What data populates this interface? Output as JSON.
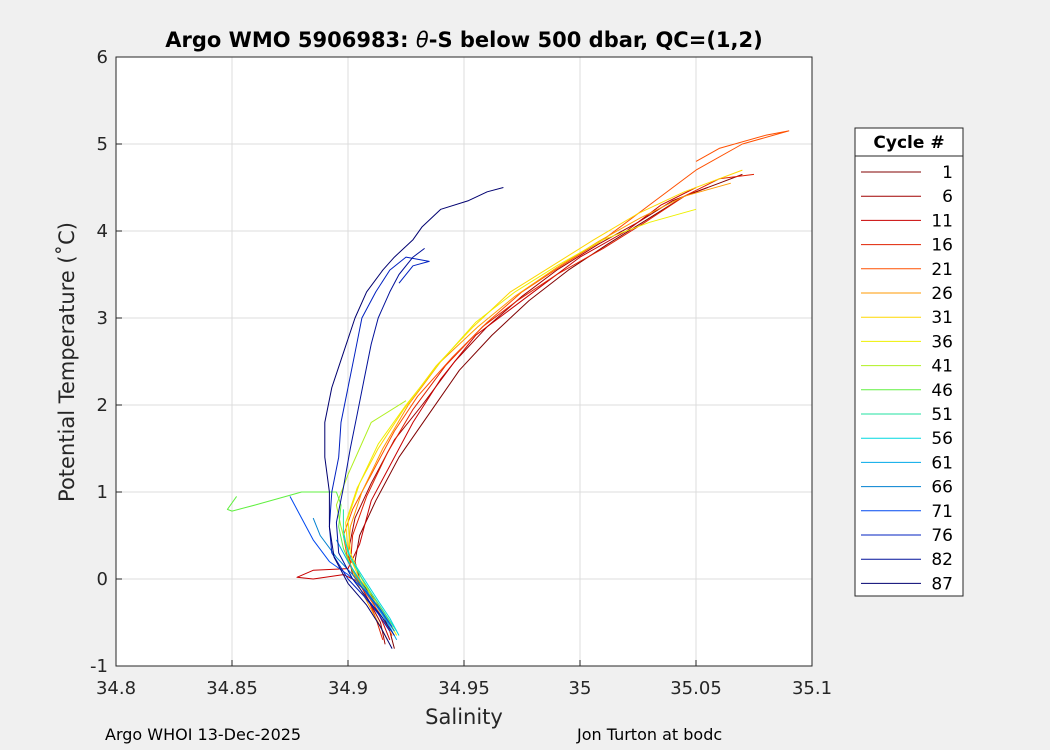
{
  "chart_data": {
    "type": "line",
    "title_prefix": "Argo WMO 5906983: ",
    "title_theta": "θ",
    "title_suffix": "-S below 500 dbar,  QC=(1,2)",
    "xlabel": "Salinity",
    "ylabel": "Potential Temperature (˚C)",
    "xlim": [
      34.8,
      35.1
    ],
    "ylim": [
      -1,
      6
    ],
    "xticks": [
      "34.8",
      "34.85",
      "34.9",
      "34.95",
      "35",
      "35.05",
      "35.1"
    ],
    "yticks": [
      "-1",
      "0",
      "1",
      "2",
      "3",
      "4",
      "5",
      "6"
    ],
    "grid": true,
    "legend": {
      "title": "Cycle #",
      "placement": "right",
      "entries": [
        {
          "name": "1",
          "color": "#800000"
        },
        {
          "name": "6",
          "color": "#a00000"
        },
        {
          "name": "11",
          "color": "#c80000"
        },
        {
          "name": "16",
          "color": "#e02000"
        },
        {
          "name": "21",
          "color": "#ff5000"
        },
        {
          "name": "26",
          "color": "#ff9a00"
        },
        {
          "name": "31",
          "color": "#ffd800"
        },
        {
          "name": "36",
          "color": "#eef000"
        },
        {
          "name": "41",
          "color": "#b0f020"
        },
        {
          "name": "46",
          "color": "#60f040"
        },
        {
          "name": "51",
          "color": "#20e0a0"
        },
        {
          "name": "56",
          "color": "#00d8e0"
        },
        {
          "name": "61",
          "color": "#00a8e8"
        },
        {
          "name": "66",
          "color": "#0080d0"
        },
        {
          "name": "71",
          "color": "#0048f0"
        },
        {
          "name": "76",
          "color": "#0020c0"
        },
        {
          "name": "82",
          "color": "#00109a"
        },
        {
          "name": "87",
          "color": "#000070"
        }
      ]
    },
    "series": [
      {
        "name": "1",
        "color": "#800000",
        "points": [
          [
            34.92,
            -0.8
          ],
          [
            34.918,
            -0.6
          ],
          [
            34.915,
            -0.4
          ],
          [
            34.912,
            -0.25
          ],
          [
            34.908,
            -0.12
          ],
          [
            34.905,
            0.0
          ],
          [
            34.903,
            0.2
          ],
          [
            34.905,
            0.5
          ],
          [
            34.912,
            0.9
          ],
          [
            34.922,
            1.4
          ],
          [
            34.935,
            1.9
          ],
          [
            34.948,
            2.4
          ],
          [
            34.962,
            2.8
          ],
          [
            34.978,
            3.2
          ],
          [
            34.995,
            3.55
          ],
          [
            35.012,
            3.85
          ],
          [
            35.03,
            4.15
          ],
          [
            35.045,
            4.4
          ],
          [
            35.06,
            4.55
          ],
          [
            35.07,
            4.65
          ]
        ]
      },
      {
        "name": "6",
        "color": "#a00000",
        "points": [
          [
            34.916,
            -0.75
          ],
          [
            34.914,
            -0.5
          ],
          [
            34.91,
            -0.3
          ],
          [
            34.906,
            -0.1
          ],
          [
            34.902,
            0.05
          ],
          [
            34.9,
            0.3
          ],
          [
            34.903,
            0.7
          ],
          [
            34.91,
            1.1
          ],
          [
            34.92,
            1.6
          ],
          [
            34.932,
            2.0
          ],
          [
            34.946,
            2.5
          ],
          [
            34.96,
            2.9
          ],
          [
            34.975,
            3.25
          ],
          [
            34.99,
            3.55
          ],
          [
            35.008,
            3.85
          ],
          [
            35.025,
            4.1
          ],
          [
            35.04,
            4.35
          ],
          [
            35.055,
            4.5
          ]
        ]
      },
      {
        "name": "11",
        "color": "#c80000",
        "points": [
          [
            34.918,
            -0.7
          ],
          [
            34.915,
            -0.5
          ],
          [
            34.911,
            -0.28
          ],
          [
            34.906,
            -0.05
          ],
          [
            34.898,
            0.05
          ],
          [
            34.885,
            0.0
          ],
          [
            34.878,
            0.02
          ],
          [
            34.885,
            0.1
          ],
          [
            34.9,
            0.12
          ],
          [
            34.905,
            0.4
          ],
          [
            34.91,
            0.9
          ],
          [
            34.918,
            1.3
          ],
          [
            34.928,
            1.8
          ],
          [
            34.94,
            2.3
          ],
          [
            34.955,
            2.8
          ],
          [
            34.97,
            3.1
          ],
          [
            34.985,
            3.4
          ],
          [
            35.0,
            3.7
          ],
          [
            35.02,
            4.0
          ],
          [
            35.035,
            4.3
          ],
          [
            35.05,
            4.5
          ]
        ]
      },
      {
        "name": "16",
        "color": "#e02000",
        "points": [
          [
            34.915,
            -0.7
          ],
          [
            34.912,
            -0.45
          ],
          [
            34.909,
            -0.25
          ],
          [
            34.905,
            -0.05
          ],
          [
            34.901,
            0.15
          ],
          [
            34.902,
            0.5
          ],
          [
            34.908,
            0.95
          ],
          [
            34.917,
            1.45
          ],
          [
            34.928,
            1.95
          ],
          [
            34.942,
            2.45
          ],
          [
            34.958,
            2.9
          ],
          [
            34.973,
            3.2
          ],
          [
            34.99,
            3.5
          ],
          [
            35.01,
            3.8
          ],
          [
            35.028,
            4.1
          ],
          [
            35.045,
            4.4
          ],
          [
            35.06,
            4.6
          ],
          [
            35.075,
            4.65
          ]
        ]
      },
      {
        "name": "21",
        "color": "#ff5000",
        "points": [
          [
            34.919,
            -0.65
          ],
          [
            34.915,
            -0.45
          ],
          [
            34.91,
            -0.25
          ],
          [
            34.905,
            -0.05
          ],
          [
            34.9,
            0.2
          ],
          [
            34.898,
            0.5
          ],
          [
            34.902,
            0.8
          ],
          [
            34.91,
            1.2
          ],
          [
            34.92,
            1.7
          ],
          [
            34.93,
            2.1
          ],
          [
            34.945,
            2.55
          ],
          [
            34.96,
            2.95
          ],
          [
            34.975,
            3.3
          ],
          [
            34.992,
            3.6
          ],
          [
            35.01,
            3.9
          ],
          [
            35.03,
            4.3
          ],
          [
            35.05,
            4.7
          ],
          [
            35.07,
            5.0
          ],
          [
            35.09,
            5.15
          ],
          [
            35.08,
            5.1
          ],
          [
            35.06,
            4.95
          ],
          [
            35.05,
            4.8
          ]
        ]
      },
      {
        "name": "26",
        "color": "#ff9a00",
        "points": [
          [
            34.917,
            -0.7
          ],
          [
            34.913,
            -0.5
          ],
          [
            34.909,
            -0.3
          ],
          [
            34.904,
            -0.05
          ],
          [
            34.9,
            0.25
          ],
          [
            34.901,
            0.6
          ],
          [
            34.906,
            1.0
          ],
          [
            34.915,
            1.5
          ],
          [
            34.926,
            2.0
          ],
          [
            34.94,
            2.5
          ],
          [
            34.956,
            2.9
          ],
          [
            34.972,
            3.25
          ],
          [
            34.99,
            3.58
          ],
          [
            35.008,
            3.88
          ],
          [
            35.026,
            4.15
          ],
          [
            35.045,
            4.4
          ],
          [
            35.065,
            4.55
          ]
        ]
      },
      {
        "name": "31",
        "color": "#ffd800",
        "points": [
          [
            34.92,
            -0.6
          ],
          [
            34.916,
            -0.4
          ],
          [
            34.911,
            -0.2
          ],
          [
            34.905,
            0.0
          ],
          [
            34.9,
            0.3
          ],
          [
            34.899,
            0.65
          ],
          [
            34.904,
            1.05
          ],
          [
            34.913,
            1.5
          ],
          [
            34.924,
            1.95
          ],
          [
            34.938,
            2.45
          ],
          [
            34.954,
            2.9
          ],
          [
            34.97,
            3.3
          ],
          [
            34.988,
            3.6
          ],
          [
            35.006,
            3.9
          ],
          [
            35.025,
            4.2
          ],
          [
            35.045,
            4.45
          ],
          [
            35.07,
            4.7
          ]
        ]
      },
      {
        "name": "36",
        "color": "#eef000",
        "points": [
          [
            34.921,
            -0.65
          ],
          [
            34.917,
            -0.45
          ],
          [
            34.912,
            -0.25
          ],
          [
            34.906,
            0.0
          ],
          [
            34.901,
            0.3
          ],
          [
            34.9,
            0.7
          ],
          [
            34.905,
            1.1
          ],
          [
            34.913,
            1.55
          ],
          [
            34.925,
            2.0
          ],
          [
            34.94,
            2.5
          ],
          [
            34.955,
            2.95
          ],
          [
            34.972,
            3.3
          ],
          [
            34.99,
            3.6
          ],
          [
            35.01,
            3.9
          ],
          [
            35.03,
            4.1
          ],
          [
            35.05,
            4.25
          ]
        ]
      },
      {
        "name": "41",
        "color": "#b0f020",
        "points": [
          [
            34.92,
            -0.6
          ],
          [
            34.915,
            -0.4
          ],
          [
            34.91,
            -0.2
          ],
          [
            34.905,
            0.05
          ],
          [
            34.9,
            0.3
          ],
          [
            34.897,
            0.6
          ],
          [
            34.895,
            0.85
          ],
          [
            34.9,
            1.2
          ],
          [
            34.905,
            1.5
          ],
          [
            34.91,
            1.8
          ],
          [
            34.925,
            2.05
          ]
        ]
      },
      {
        "name": "46",
        "color": "#60f040",
        "points": [
          [
            34.919,
            -0.55
          ],
          [
            34.914,
            -0.35
          ],
          [
            34.908,
            -0.15
          ],
          [
            34.902,
            0.1
          ],
          [
            34.898,
            0.35
          ],
          [
            34.896,
            0.6
          ],
          [
            34.897,
            0.85
          ],
          [
            34.895,
            1.0
          ],
          [
            34.88,
            1.0
          ],
          [
            34.86,
            0.85
          ],
          [
            34.85,
            0.78
          ],
          [
            34.848,
            0.8
          ],
          [
            34.852,
            0.95
          ]
        ]
      },
      {
        "name": "51",
        "color": "#20e0a0",
        "points": [
          [
            34.921,
            -0.6
          ],
          [
            34.916,
            -0.4
          ],
          [
            34.911,
            -0.2
          ],
          [
            34.905,
            0.05
          ],
          [
            34.9,
            0.3
          ],
          [
            34.898,
            0.55
          ],
          [
            34.898,
            0.8
          ]
        ]
      },
      {
        "name": "56",
        "color": "#00d8e0",
        "points": [
          [
            34.922,
            -0.65
          ],
          [
            34.918,
            -0.45
          ],
          [
            34.913,
            -0.25
          ],
          [
            34.907,
            0.0
          ],
          [
            34.901,
            0.25
          ],
          [
            34.898,
            0.5
          ]
        ]
      },
      {
        "name": "61",
        "color": "#00a8e8",
        "points": [
          [
            34.921,
            -0.7
          ],
          [
            34.917,
            -0.5
          ],
          [
            34.912,
            -0.3
          ],
          [
            34.906,
            -0.05
          ],
          [
            34.9,
            0.2
          ],
          [
            34.895,
            0.45
          ]
        ]
      },
      {
        "name": "66",
        "color": "#0080d0",
        "points": [
          [
            34.92,
            -0.6
          ],
          [
            34.915,
            -0.4
          ],
          [
            34.909,
            -0.2
          ],
          [
            34.902,
            0.05
          ],
          [
            34.895,
            0.25
          ],
          [
            34.888,
            0.5
          ],
          [
            34.885,
            0.7
          ]
        ]
      },
      {
        "name": "71",
        "color": "#0048f0",
        "points": [
          [
            34.919,
            -0.55
          ],
          [
            34.914,
            -0.35
          ],
          [
            34.908,
            -0.15
          ],
          [
            34.9,
            0.05
          ],
          [
            34.892,
            0.2
          ],
          [
            34.885,
            0.45
          ],
          [
            34.88,
            0.7
          ],
          [
            34.875,
            0.95
          ]
        ]
      },
      {
        "name": "76",
        "color": "#0020c0",
        "points": [
          [
            34.918,
            -0.6
          ],
          [
            34.913,
            -0.4
          ],
          [
            34.907,
            -0.2
          ],
          [
            34.9,
            0.0
          ],
          [
            34.893,
            0.3
          ],
          [
            34.892,
            0.6
          ],
          [
            34.893,
            1.0
          ],
          [
            34.896,
            1.4
          ],
          [
            34.897,
            1.8
          ],
          [
            34.9,
            2.2
          ],
          [
            34.903,
            2.6
          ],
          [
            34.906,
            3.0
          ],
          [
            34.912,
            3.3
          ],
          [
            34.918,
            3.55
          ],
          [
            34.925,
            3.7
          ],
          [
            34.935,
            3.65
          ],
          [
            34.928,
            3.6
          ],
          [
            34.922,
            3.4
          ]
        ]
      },
      {
        "name": "82",
        "color": "#00109a",
        "points": [
          [
            34.92,
            -0.65
          ],
          [
            34.915,
            -0.45
          ],
          [
            34.909,
            -0.25
          ],
          [
            34.902,
            0.0
          ],
          [
            34.896,
            0.3
          ],
          [
            34.895,
            0.65
          ],
          [
            34.898,
            1.05
          ],
          [
            34.901,
            1.5
          ],
          [
            34.904,
            1.9
          ],
          [
            34.907,
            2.3
          ],
          [
            34.91,
            2.7
          ],
          [
            34.913,
            3.0
          ],
          [
            34.918,
            3.3
          ],
          [
            34.922,
            3.5
          ],
          [
            34.928,
            3.7
          ],
          [
            34.933,
            3.8
          ]
        ]
      },
      {
        "name": "87",
        "color": "#000070",
        "points": [
          [
            34.919,
            -0.8
          ],
          [
            34.914,
            -0.55
          ],
          [
            34.908,
            -0.3
          ],
          [
            34.9,
            -0.05
          ],
          [
            34.894,
            0.25
          ],
          [
            34.892,
            0.6
          ],
          [
            34.892,
            1.0
          ],
          [
            34.89,
            1.4
          ],
          [
            34.89,
            1.8
          ],
          [
            34.893,
            2.2
          ],
          [
            34.898,
            2.6
          ],
          [
            34.903,
            3.0
          ],
          [
            34.908,
            3.3
          ],
          [
            34.915,
            3.55
          ],
          [
            34.92,
            3.7
          ],
          [
            34.928,
            3.9
          ],
          [
            34.932,
            4.05
          ],
          [
            34.94,
            4.25
          ],
          [
            34.952,
            4.35
          ],
          [
            34.96,
            4.45
          ],
          [
            34.967,
            4.5
          ]
        ]
      }
    ]
  },
  "footer": {
    "left": "Argo WHOI 13-Dec-2025",
    "right": "Jon Turton at bodc"
  }
}
